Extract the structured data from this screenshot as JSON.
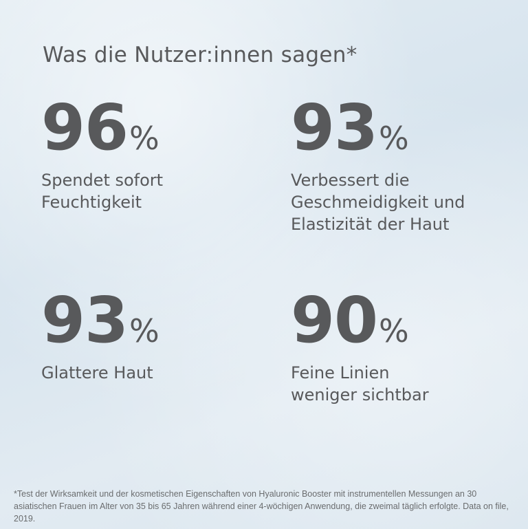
{
  "title": "Was die Nutzer:innen sagen*",
  "stats": [
    {
      "value": "96",
      "unit": "%",
      "label": "Spendet sofort\nFeuchtigkeit"
    },
    {
      "value": "93",
      "unit": "%",
      "label": "Verbessert die\nGeschmeidigkeit und\nElastizität der Haut"
    },
    {
      "value": "93",
      "unit": "%",
      "label": "Glattere Haut"
    },
    {
      "value": "90",
      "unit": "%",
      "label": "Feine Linien\nweniger sichtbar"
    }
  ],
  "footnote": "*Test der Wirksamkeit und der kosmetischen Eigenschaften von Hyaluronic Booster mit instrumentellen Messungen an 30 asiatischen Frauen im Alter von 35 bis 65 Jahren während einer 4-wöchigen Anwendung, die zweimal täglich erfolgte. Data on file, 2019."
}
